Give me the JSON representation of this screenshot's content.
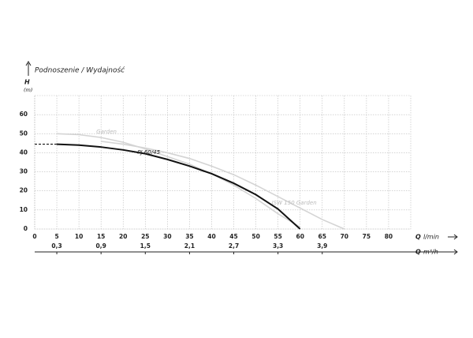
{
  "chart_data": {
    "type": "line",
    "title": "Podnoszenie / Wydajność",
    "ylabel": "H",
    "yunit": "(m)",
    "xlabel": "Q",
    "xunit": "l/min",
    "x2label": "Q",
    "x2unit": "m³/h",
    "xlim": [
      0,
      85
    ],
    "xticks": [
      0,
      5,
      10,
      15,
      20,
      25,
      30,
      35,
      40,
      45,
      50,
      55,
      60,
      65,
      70,
      75,
      80
    ],
    "x2lim": [
      0,
      5.1
    ],
    "x2ticks": [
      {
        "value": 0.3,
        "label": "0,3"
      },
      {
        "value": 0.9,
        "label": "0,9"
      },
      {
        "value": 1.5,
        "label": "1,5"
      },
      {
        "value": 2.1,
        "label": "2,1"
      },
      {
        "value": 2.7,
        "label": "2,7"
      },
      {
        "value": 3.3,
        "label": "3,3"
      },
      {
        "value": 3.9,
        "label": "3,9"
      }
    ],
    "ylim": [
      0,
      70
    ],
    "yticks": [
      0,
      10,
      20,
      30,
      40,
      50,
      60
    ],
    "grid": true,
    "series": [
      {
        "name": "Garden",
        "color": "#d4d4d4",
        "x": [
          5,
          10,
          15,
          20,
          25,
          30,
          35,
          40,
          45,
          50,
          55,
          60
        ],
        "values": [
          50,
          49.5,
          48,
          45.5,
          42,
          38,
          34,
          29,
          23,
          16,
          8,
          1
        ]
      },
      {
        "name": "JSW 150 Garden",
        "color": "#d4d4d4",
        "x": [
          15,
          20,
          25,
          30,
          35,
          40,
          45,
          50,
          55,
          60,
          65,
          70
        ],
        "values": [
          46,
          44.5,
          42.5,
          40,
          37,
          33,
          28.5,
          23,
          17,
          11,
          5,
          0
        ]
      },
      {
        "color": "#111111",
        "style": "dashed",
        "x": [
          0,
          5
        ],
        "values": [
          44.5,
          44.5
        ]
      },
      {
        "name": "PJ 60/45",
        "color": "#111111",
        "x": [
          5,
          10,
          15,
          20,
          25,
          30,
          35,
          40,
          45,
          50,
          55,
          60
        ],
        "values": [
          44.5,
          44,
          43,
          41.5,
          39.5,
          36.5,
          33,
          29,
          24,
          18,
          10.5,
          0
        ]
      }
    ]
  }
}
